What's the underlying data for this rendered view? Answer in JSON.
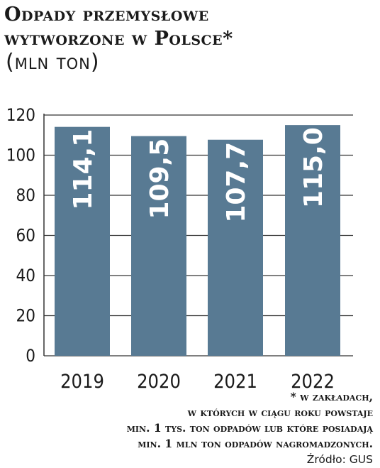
{
  "title_line1": "Odpady przemysłowe",
  "title_line2": "wytworzone w Polsce*",
  "subtitle": "(mln ton)",
  "colors": {
    "bar": "#587a93",
    "grid": "#333333",
    "text": "#1a1a1a"
  },
  "chart_data": {
    "type": "bar",
    "categories": [
      "2019",
      "2020",
      "2021",
      "2022"
    ],
    "values": [
      114.1,
      109.5,
      107.7,
      115.0
    ],
    "value_labels": [
      "114,1",
      "109,5",
      "107,7",
      "115,0"
    ],
    "yticks": [
      0,
      20,
      40,
      60,
      80,
      100,
      120
    ],
    "ylim": [
      0,
      120
    ],
    "grid": true
  },
  "footnote": {
    "line1": "* w zakładach,",
    "line2": "w których w ciągu roku powstaje",
    "line3": "min. 1 tys. ton odpadów lub które posiadają",
    "line4": "min. 1 mln ton odpadów nagromadzonych.",
    "source": "Źródło: GUS"
  }
}
